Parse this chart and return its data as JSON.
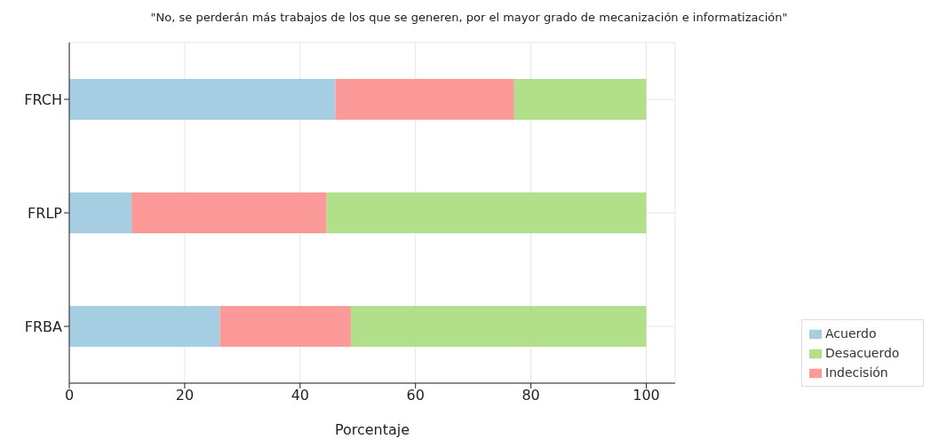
{
  "chart_data": {
    "type": "bar",
    "orientation": "horizontal",
    "stacked": true,
    "title": "\"No, se perderán más trabajos de los que se generen, por el mayor grado de mecanización e informatización\"",
    "xlabel": "Porcentaje",
    "categories": [
      "FRCH",
      "FRLP",
      "FRBA"
    ],
    "series": [
      {
        "name": "Acuerdo",
        "color": "#a6cee3",
        "values": [
          46.1,
          10.8,
          26.1
        ]
      },
      {
        "name": "Indecisión",
        "color": "#fb9a99",
        "values": [
          31.0,
          33.8,
          22.7
        ]
      },
      {
        "name": "Desacuerdo",
        "color": "#b2df8a",
        "values": [
          22.9,
          55.4,
          51.2
        ]
      }
    ],
    "xlim": [
      0,
      105
    ],
    "xticks": [
      0,
      20,
      40,
      60,
      80,
      100
    ],
    "grid": true,
    "legend": "bottom right"
  }
}
